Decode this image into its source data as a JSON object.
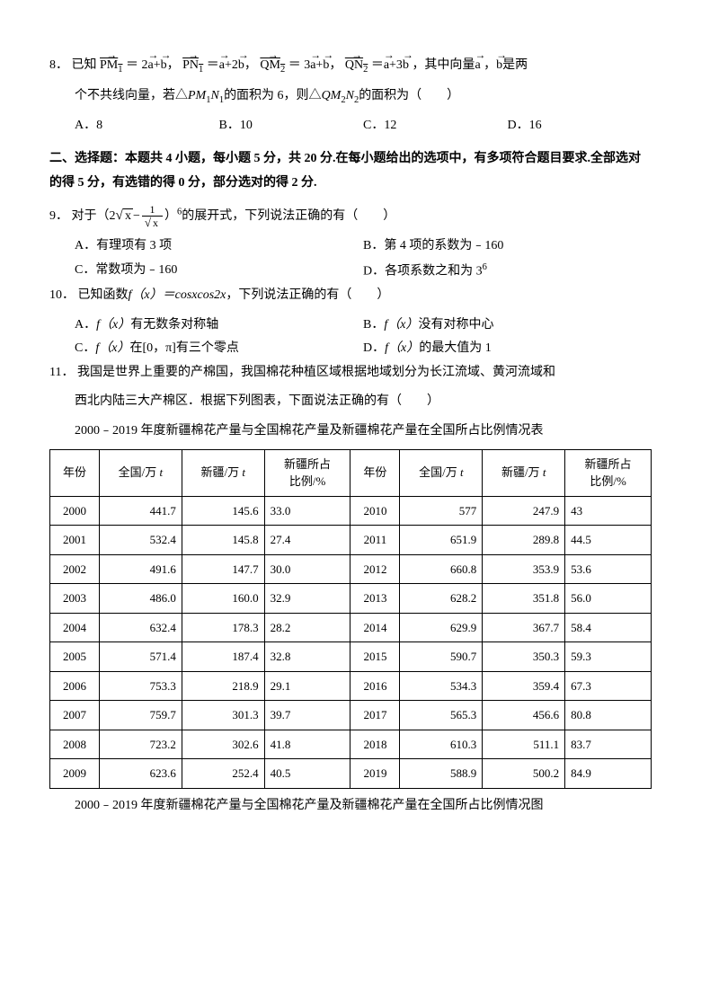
{
  "q8": {
    "num": "8．",
    "text_a": "已知",
    "pm1": "PM",
    "pm1sub": "1",
    "eq1": "＝ 2",
    "a1": "a",
    "plus1": "+",
    "b1": "b",
    "comma1": "，",
    "pn1": "PN",
    "pn1sub": "1",
    "eq2": "＝",
    "a2": "a",
    "plus2": "+2",
    "b2": "b",
    "comma2": "，",
    "qm2": "QM",
    "qm2sub": "2",
    "eq3": "＝ 3",
    "a3": "a",
    "plus3": "+",
    "b3": "b",
    "comma3": "，",
    "qn2": "QN",
    "qn2sub": "2",
    "eq4": "＝",
    "a4": "a",
    "plus4": "+3",
    "b4": "b",
    "text_b": "，其中向量",
    "va": "a",
    "text_c": " ，",
    "vb": "b",
    "text_d": "是两",
    "line2": "个不共线向量，若△",
    "pm1n1": "PM",
    "pm1n1_i": "1",
    "n1": "N",
    "n1_i": "1",
    "line2b": "的面积为 6，则△",
    "qm2n2": "QM",
    "qm2n2_i": "2",
    "n2": "N",
    "n2_i": "2",
    "line2c": "的面积为（　　）",
    "A": "A．8",
    "B": "B．10",
    "C": "C．12",
    "D": "D．16"
  },
  "section2": "二、选择题：本题共 4 小题，每小题 5 分，共 20 分.在每小题给出的选项中，有多项符合题目要求.全部选对的得 5 分，有选错的得 0 分，部分选对的得 2 分.",
  "q9": {
    "num": "9．",
    "text_a": "对于（2",
    "sqrt_x": "x",
    "minus": "−",
    "frac_num": "1",
    "frac_den_sqrt": "x",
    "text_b": "）",
    "exp": "6",
    "text_c": "的展开式，下列说法正确的有（　　）",
    "A": "A．有理项有 3 项",
    "B": "B．第 4 项的系数为﹣160",
    "C": "C．常数项为﹣160",
    "D": "D．各项系数之和为 3",
    "D_exp": "6"
  },
  "q10": {
    "num": "10．",
    "text": "已知函数",
    "fx": "f（x）＝cosxcos2x",
    "text_b": "，下列说法正确的有（　　）",
    "A_a": "A．",
    "A_f": "f（x）",
    "A_b": "有无数条对称轴",
    "B_a": "B．",
    "B_f": "f（x）",
    "B_b": "没有对称中心",
    "C_a": "C．",
    "C_f": "f（x）",
    "C_b": "在[0，π]有三个零点",
    "D_a": "D．",
    "D_f": "f（x）",
    "D_b": "的最大值为 1"
  },
  "q11": {
    "num": "11．",
    "line1": "我国是世界上重要的产棉国，我国棉花种植区域根据地域划分为长江流域、黄河流域和",
    "line2": "西北内陆三大产棉区．根据下列图表，下面说法正确的有（　　）",
    "table_title": "2000﹣2019 年度新疆棉花产量与全国棉花产量及新疆棉花产量在全国所占比例情况表",
    "chart_title": "2000﹣2019 年度新疆棉花产量与全国棉花产量及新疆棉花产量在全国所占比例情况图"
  },
  "table": {
    "headers": {
      "year": "年份",
      "national": "全国/万",
      "national_unit": "t",
      "xinjiang": "新疆/万",
      "xinjiang_unit": "t",
      "ratio_a": "新疆所占",
      "ratio_b": "比例/%"
    },
    "left": [
      {
        "y": "2000",
        "n": "441.7",
        "x": "145.6",
        "p": "33.0"
      },
      {
        "y": "2001",
        "n": "532.4",
        "x": "145.8",
        "p": "27.4"
      },
      {
        "y": "2002",
        "n": "491.6",
        "x": "147.7",
        "p": "30.0"
      },
      {
        "y": "2003",
        "n": "486.0",
        "x": "160.0",
        "p": "32.9"
      },
      {
        "y": "2004",
        "n": "632.4",
        "x": "178.3",
        "p": "28.2"
      },
      {
        "y": "2005",
        "n": "571.4",
        "x": "187.4",
        "p": "32.8"
      },
      {
        "y": "2006",
        "n": "753.3",
        "x": "218.9",
        "p": "29.1"
      },
      {
        "y": "2007",
        "n": "759.7",
        "x": "301.3",
        "p": "39.7"
      },
      {
        "y": "2008",
        "n": "723.2",
        "x": "302.6",
        "p": "41.8"
      },
      {
        "y": "2009",
        "n": "623.6",
        "x": "252.4",
        "p": "40.5"
      }
    ],
    "right": [
      {
        "y": "2010",
        "n": "577",
        "x": "247.9",
        "p": "43"
      },
      {
        "y": "2011",
        "n": "651.9",
        "x": "289.8",
        "p": "44.5"
      },
      {
        "y": "2012",
        "n": "660.8",
        "x": "353.9",
        "p": "53.6"
      },
      {
        "y": "2013",
        "n": "628.2",
        "x": "351.8",
        "p": "56.0"
      },
      {
        "y": "2014",
        "n": "629.9",
        "x": "367.7",
        "p": "58.4"
      },
      {
        "y": "2015",
        "n": "590.7",
        "x": "350.3",
        "p": "59.3"
      },
      {
        "y": "2016",
        "n": "534.3",
        "x": "359.4",
        "p": "67.3"
      },
      {
        "y": "2017",
        "n": "565.3",
        "x": "456.6",
        "p": "80.8"
      },
      {
        "y": "2018",
        "n": "610.3",
        "x": "511.1",
        "p": "83.7"
      },
      {
        "y": "2019",
        "n": "588.9",
        "x": "500.2",
        "p": "84.9"
      }
    ]
  }
}
